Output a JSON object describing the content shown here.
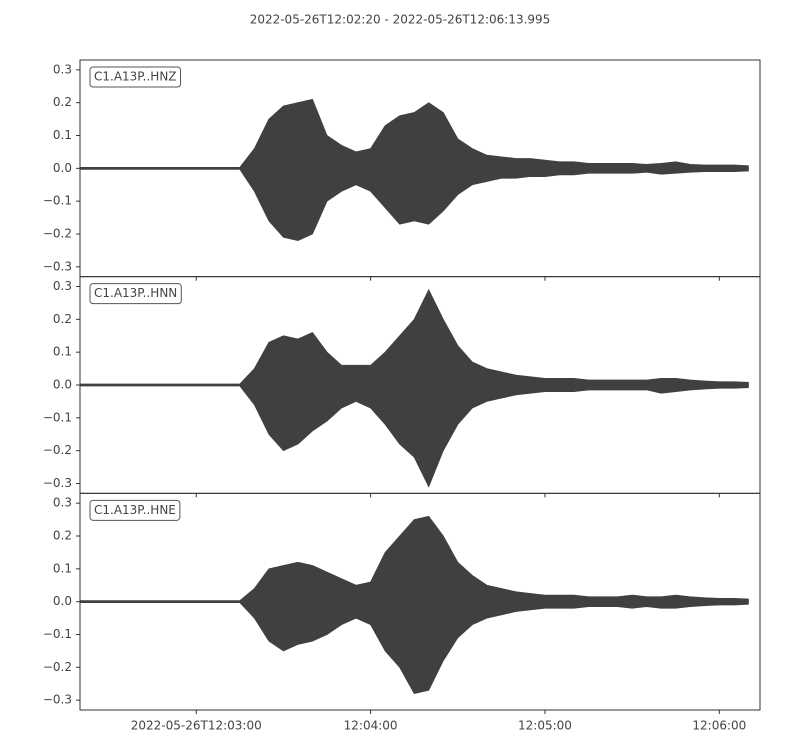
{
  "title": "2022-05-26T12:02:20  -  2022-05-26T12:06:13.995",
  "chart_data": [
    {
      "type": "area",
      "label": "C1.A13P..HNZ",
      "color": "#404040",
      "x": [
        "2022-05-26T12:02:20",
        "2022-05-26T12:02:25",
        "2022-05-26T12:02:30",
        "2022-05-26T12:02:35",
        "2022-05-26T12:02:40",
        "2022-05-26T12:02:45",
        "2022-05-26T12:02:50",
        "2022-05-26T12:02:55",
        "2022-05-26T12:03:00",
        "2022-05-26T12:03:05",
        "2022-05-26T12:03:10",
        "2022-05-26T12:03:15",
        "2022-05-26T12:03:20",
        "2022-05-26T12:03:25",
        "2022-05-26T12:03:30",
        "2022-05-26T12:03:35",
        "2022-05-26T12:03:40",
        "2022-05-26T12:03:45",
        "2022-05-26T12:03:50",
        "2022-05-26T12:03:55",
        "2022-05-26T12:04:00",
        "2022-05-26T12:04:05",
        "2022-05-26T12:04:10",
        "2022-05-26T12:04:15",
        "2022-05-26T12:04:20",
        "2022-05-26T12:04:25",
        "2022-05-26T12:04:30",
        "2022-05-26T12:04:35",
        "2022-05-26T12:04:40",
        "2022-05-26T12:04:45",
        "2022-05-26T12:04:50",
        "2022-05-26T12:04:55",
        "2022-05-26T12:05:00",
        "2022-05-26T12:05:05",
        "2022-05-26T12:05:10",
        "2022-05-26T12:05:15",
        "2022-05-26T12:05:20",
        "2022-05-26T12:05:25",
        "2022-05-26T12:05:30",
        "2022-05-26T12:05:35",
        "2022-05-26T12:05:40",
        "2022-05-26T12:05:45",
        "2022-05-26T12:05:50",
        "2022-05-26T12:05:55",
        "2022-05-26T12:06:00",
        "2022-05-26T12:06:05",
        "2022-05-26T12:06:10"
      ],
      "series": [
        {
          "values": [
            0.003,
            0.003,
            0.003,
            0.003,
            0.003,
            0.003,
            0.003,
            0.003,
            0.003,
            0.003,
            0.003,
            0.003,
            0.06,
            0.15,
            0.19,
            0.2,
            0.21,
            0.1,
            0.07,
            0.05,
            0.06,
            0.13,
            0.16,
            0.17,
            0.2,
            0.17,
            0.09,
            0.06,
            0.04,
            0.035,
            0.03,
            0.03,
            0.025,
            0.02,
            0.02,
            0.015,
            0.015,
            0.015,
            0.015,
            0.012,
            0.015,
            0.02,
            0.012,
            0.01,
            0.01,
            0.01,
            0.008
          ]
        },
        {
          "values": [
            -0.003,
            -0.003,
            -0.003,
            -0.003,
            -0.003,
            -0.003,
            -0.003,
            -0.003,
            -0.003,
            -0.003,
            -0.003,
            -0.003,
            -0.07,
            -0.16,
            -0.21,
            -0.22,
            -0.2,
            -0.1,
            -0.07,
            -0.05,
            -0.07,
            -0.12,
            -0.17,
            -0.16,
            -0.17,
            -0.13,
            -0.08,
            -0.05,
            -0.04,
            -0.03,
            -0.03,
            -0.025,
            -0.025,
            -0.02,
            -0.02,
            -0.015,
            -0.015,
            -0.015,
            -0.015,
            -0.012,
            -0.018,
            -0.015,
            -0.012,
            -0.01,
            -0.01,
            -0.01,
            -0.008
          ]
        }
      ],
      "ylim": [
        -0.33,
        0.33
      ],
      "yticks": [
        0.3,
        0.2,
        0.1,
        {
          "value": 0,
          "label": "0.0"
        },
        {
          "value": -0.1,
          "label": "−0.1"
        },
        {
          "value": -0.2,
          "label": "−0.2"
        },
        {
          "value": -0.3,
          "label": "−0.3"
        }
      ],
      "xlim": [
        "2022-05-26T12:02:20",
        "2022-05-26T12:06:13.995"
      ],
      "xticks": [
        {
          "value": "2022-05-26T12:03:00",
          "label": "2022-05-26T12:03:00"
        },
        {
          "value": "2022-05-26T12:04:00",
          "label": "12:04:00"
        },
        {
          "value": "2022-05-26T12:05:00",
          "label": "12:05:00"
        },
        {
          "value": "2022-05-26T12:06:00",
          "label": "12:06:00"
        }
      ]
    },
    {
      "type": "area",
      "label": "C1.A13P..HNN",
      "color": "#404040",
      "x": [
        "2022-05-26T12:02:20",
        "2022-05-26T12:02:25",
        "2022-05-26T12:02:30",
        "2022-05-26T12:02:35",
        "2022-05-26T12:02:40",
        "2022-05-26T12:02:45",
        "2022-05-26T12:02:50",
        "2022-05-26T12:02:55",
        "2022-05-26T12:03:00",
        "2022-05-26T12:03:05",
        "2022-05-26T12:03:10",
        "2022-05-26T12:03:15",
        "2022-05-26T12:03:20",
        "2022-05-26T12:03:25",
        "2022-05-26T12:03:30",
        "2022-05-26T12:03:35",
        "2022-05-26T12:03:40",
        "2022-05-26T12:03:45",
        "2022-05-26T12:03:50",
        "2022-05-26T12:03:55",
        "2022-05-26T12:04:00",
        "2022-05-26T12:04:05",
        "2022-05-26T12:04:10",
        "2022-05-26T12:04:15",
        "2022-05-26T12:04:20",
        "2022-05-26T12:04:25",
        "2022-05-26T12:04:30",
        "2022-05-26T12:04:35",
        "2022-05-26T12:04:40",
        "2022-05-26T12:04:45",
        "2022-05-26T12:04:50",
        "2022-05-26T12:04:55",
        "2022-05-26T12:05:00",
        "2022-05-26T12:05:05",
        "2022-05-26T12:05:10",
        "2022-05-26T12:05:15",
        "2022-05-26T12:05:20",
        "2022-05-26T12:05:25",
        "2022-05-26T12:05:30",
        "2022-05-26T12:05:35",
        "2022-05-26T12:05:40",
        "2022-05-26T12:05:45",
        "2022-05-26T12:05:50",
        "2022-05-26T12:05:55",
        "2022-05-26T12:06:00",
        "2022-05-26T12:06:05",
        "2022-05-26T12:06:10"
      ],
      "series": [
        {
          "values": [
            0.003,
            0.003,
            0.003,
            0.003,
            0.003,
            0.003,
            0.003,
            0.003,
            0.003,
            0.003,
            0.003,
            0.003,
            0.05,
            0.13,
            0.15,
            0.14,
            0.16,
            0.1,
            0.06,
            0.06,
            0.06,
            0.1,
            0.15,
            0.2,
            0.29,
            0.2,
            0.12,
            0.07,
            0.05,
            0.04,
            0.03,
            0.025,
            0.02,
            0.02,
            0.02,
            0.015,
            0.015,
            0.015,
            0.015,
            0.015,
            0.02,
            0.02,
            0.015,
            0.012,
            0.01,
            0.01,
            0.008
          ]
        },
        {
          "values": [
            -0.003,
            -0.003,
            -0.003,
            -0.003,
            -0.003,
            -0.003,
            -0.003,
            -0.003,
            -0.003,
            -0.003,
            -0.003,
            -0.003,
            -0.06,
            -0.15,
            -0.2,
            -0.18,
            -0.14,
            -0.11,
            -0.07,
            -0.05,
            -0.07,
            -0.12,
            -0.18,
            -0.22,
            -0.31,
            -0.2,
            -0.12,
            -0.07,
            -0.05,
            -0.04,
            -0.03,
            -0.025,
            -0.02,
            -0.02,
            -0.02,
            -0.015,
            -0.015,
            -0.015,
            -0.015,
            -0.015,
            -0.025,
            -0.02,
            -0.015,
            -0.012,
            -0.01,
            -0.01,
            -0.008
          ]
        }
      ],
      "ylim": [
        -0.33,
        0.33
      ],
      "yticks": [
        0.3,
        0.2,
        0.1,
        {
          "value": 0,
          "label": "0.0"
        },
        {
          "value": -0.1,
          "label": "−0.1"
        },
        {
          "value": -0.2,
          "label": "−0.2"
        },
        {
          "value": -0.3,
          "label": "−0.3"
        }
      ],
      "xlim": [
        "2022-05-26T12:02:20",
        "2022-05-26T12:06:13.995"
      ],
      "xticks": [
        {
          "value": "2022-05-26T12:03:00",
          "label": "2022-05-26T12:03:00"
        },
        {
          "value": "2022-05-26T12:04:00",
          "label": "12:04:00"
        },
        {
          "value": "2022-05-26T12:05:00",
          "label": "12:05:00"
        },
        {
          "value": "2022-05-26T12:06:00",
          "label": "12:06:00"
        }
      ]
    },
    {
      "type": "area",
      "label": "C1.A13P..HNE",
      "color": "#404040",
      "x": [
        "2022-05-26T12:02:20",
        "2022-05-26T12:02:25",
        "2022-05-26T12:02:30",
        "2022-05-26T12:02:35",
        "2022-05-26T12:02:40",
        "2022-05-26T12:02:45",
        "2022-05-26T12:02:50",
        "2022-05-26T12:02:55",
        "2022-05-26T12:03:00",
        "2022-05-26T12:03:05",
        "2022-05-26T12:03:10",
        "2022-05-26T12:03:15",
        "2022-05-26T12:03:20",
        "2022-05-26T12:03:25",
        "2022-05-26T12:03:30",
        "2022-05-26T12:03:35",
        "2022-05-26T12:03:40",
        "2022-05-26T12:03:45",
        "2022-05-26T12:03:50",
        "2022-05-26T12:03:55",
        "2022-05-26T12:04:00",
        "2022-05-26T12:04:05",
        "2022-05-26T12:04:10",
        "2022-05-26T12:04:15",
        "2022-05-26T12:04:20",
        "2022-05-26T12:04:25",
        "2022-05-26T12:04:30",
        "2022-05-26T12:04:35",
        "2022-05-26T12:04:40",
        "2022-05-26T12:04:45",
        "2022-05-26T12:04:50",
        "2022-05-26T12:04:55",
        "2022-05-26T12:05:00",
        "2022-05-26T12:05:05",
        "2022-05-26T12:05:10",
        "2022-05-26T12:05:15",
        "2022-05-26T12:05:20",
        "2022-05-26T12:05:25",
        "2022-05-26T12:05:30",
        "2022-05-26T12:05:35",
        "2022-05-26T12:05:40",
        "2022-05-26T12:05:45",
        "2022-05-26T12:05:50",
        "2022-05-26T12:05:55",
        "2022-05-26T12:06:00",
        "2022-05-26T12:06:05",
        "2022-05-26T12:06:10"
      ],
      "series": [
        {
          "values": [
            0.003,
            0.003,
            0.003,
            0.003,
            0.003,
            0.003,
            0.003,
            0.003,
            0.003,
            0.003,
            0.003,
            0.003,
            0.04,
            0.1,
            0.11,
            0.12,
            0.11,
            0.09,
            0.07,
            0.05,
            0.06,
            0.15,
            0.2,
            0.25,
            0.26,
            0.2,
            0.12,
            0.08,
            0.05,
            0.04,
            0.03,
            0.025,
            0.02,
            0.02,
            0.02,
            0.015,
            0.015,
            0.015,
            0.02,
            0.015,
            0.015,
            0.02,
            0.015,
            0.012,
            0.01,
            0.01,
            0.008
          ]
        },
        {
          "values": [
            -0.003,
            -0.003,
            -0.003,
            -0.003,
            -0.003,
            -0.003,
            -0.003,
            -0.003,
            -0.003,
            -0.003,
            -0.003,
            -0.003,
            -0.05,
            -0.12,
            -0.15,
            -0.13,
            -0.12,
            -0.1,
            -0.07,
            -0.05,
            -0.07,
            -0.15,
            -0.2,
            -0.28,
            -0.27,
            -0.18,
            -0.11,
            -0.07,
            -0.05,
            -0.04,
            -0.03,
            -0.025,
            -0.02,
            -0.02,
            -0.02,
            -0.015,
            -0.015,
            -0.015,
            -0.02,
            -0.015,
            -0.02,
            -0.02,
            -0.015,
            -0.012,
            -0.01,
            -0.01,
            -0.008
          ]
        }
      ],
      "ylim": [
        -0.33,
        0.33
      ],
      "yticks": [
        0.3,
        0.2,
        0.1,
        {
          "value": 0,
          "label": "0.0"
        },
        {
          "value": -0.1,
          "label": "−0.1"
        },
        {
          "value": -0.2,
          "label": "−0.2"
        },
        {
          "value": -0.3,
          "label": "−0.3"
        }
      ],
      "xlim": [
        "2022-05-26T12:02:20",
        "2022-05-26T12:06:13.995"
      ],
      "xticks": [
        {
          "value": "2022-05-26T12:03:00",
          "label": "2022-05-26T12:03:00"
        },
        {
          "value": "2022-05-26T12:04:00",
          "label": "12:04:00"
        },
        {
          "value": "2022-05-26T12:05:00",
          "label": "12:05:00"
        },
        {
          "value": "2022-05-26T12:06:00",
          "label": "12:06:00"
        }
      ]
    }
  ]
}
